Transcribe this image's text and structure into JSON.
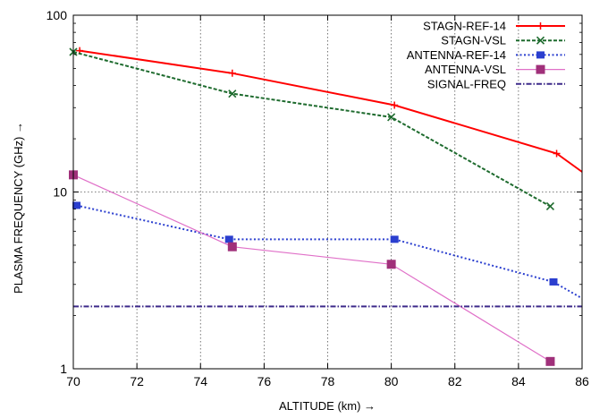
{
  "chart_data": {
    "type": "line",
    "title": "",
    "xlabel": "ALTITUDE (km) →",
    "ylabel": "PLASMA FREQUENCY (GHz) →",
    "xlim": [
      70,
      86
    ],
    "ylim": [
      1,
      100
    ],
    "y_scale": "log",
    "grid": true,
    "legend_position": "top-right",
    "x_ticks": [
      70,
      72,
      74,
      76,
      78,
      80,
      82,
      84,
      86
    ],
    "y_ticks": [
      1,
      10,
      100
    ],
    "series": [
      {
        "name": "STAGN-REF-14",
        "color": "#ff0000",
        "style": "solid",
        "marker": "plus",
        "x": [
          70.2,
          75,
          80.1,
          85.2,
          86
        ],
        "y": [
          63,
          47,
          31,
          16.5,
          13
        ],
        "marker_x": [
          70.2,
          75,
          80.1,
          85.2
        ]
      },
      {
        "name": "STAGN-VSL",
        "color": "#1e6b2e",
        "style": "dashed",
        "marker": "cross",
        "x": [
          70,
          75,
          80,
          85
        ],
        "y": [
          62,
          36,
          26.5,
          8.3
        ],
        "marker_x": [
          70,
          75,
          80,
          85
        ]
      },
      {
        "name": "ANTENNA-REF-14",
        "color": "#2b3fcf",
        "style": "dotted",
        "marker": "square",
        "x": [
          70.1,
          74.9,
          80.1,
          85.1,
          86
        ],
        "y": [
          8.4,
          5.4,
          5.4,
          3.1,
          2.5
        ],
        "marker_x": [
          70.1,
          74.9,
          80.1,
          85.1
        ]
      },
      {
        "name": "ANTENNA-VSL",
        "color": "#e070c8",
        "style": "solid-light",
        "marker": "square-filled",
        "x": [
          70,
          75,
          80,
          85
        ],
        "y": [
          12.5,
          4.9,
          3.9,
          1.1
        ],
        "marker_x": [
          70,
          75,
          80,
          85
        ]
      },
      {
        "name": "SIGNAL-FREQ",
        "color": "#3d2a8a",
        "style": "dashdot",
        "marker": "none",
        "x": [
          70,
          86
        ],
        "y": [
          2.25,
          2.25
        ],
        "marker_x": []
      }
    ]
  }
}
